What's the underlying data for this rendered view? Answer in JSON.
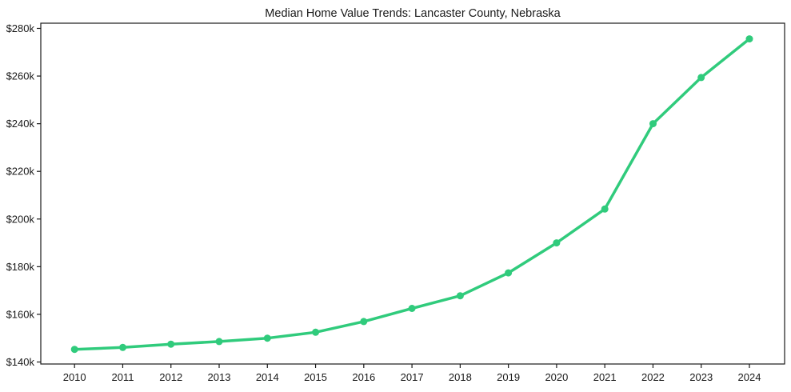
{
  "chart_data": {
    "type": "line",
    "title": "Median Home Value Trends: Lancaster County, Nebraska",
    "xlabel": "",
    "ylabel": "",
    "categories": [
      "2010",
      "2011",
      "2012",
      "2013",
      "2014",
      "2015",
      "2016",
      "2017",
      "2018",
      "2019",
      "2020",
      "2021",
      "2022",
      "2023",
      "2024"
    ],
    "series": [
      {
        "name": "Median Home Value",
        "values": [
          145300,
          146100,
          147500,
          148600,
          150000,
          152500,
          157000,
          162500,
          167800,
          177400,
          190000,
          204200,
          240000,
          259400,
          275600
        ]
      }
    ],
    "yticks": [
      {
        "value": 140000,
        "label": "$140k"
      },
      {
        "value": 160000,
        "label": "$160k"
      },
      {
        "value": 180000,
        "label": "$180k"
      },
      {
        "value": 200000,
        "label": "$200k"
      },
      {
        "value": 220000,
        "label": "$220k"
      },
      {
        "value": 240000,
        "label": "$240k"
      },
      {
        "value": 260000,
        "label": "$260k"
      },
      {
        "value": 280000,
        "label": "$280k"
      }
    ],
    "xlim": [
      2009.3,
      2024.73
    ],
    "ylim": [
      139160,
      282180
    ],
    "grid": false,
    "legend_position": "none",
    "line_color": "#30cb7c",
    "marker_color": "#30cb7c",
    "axis_color": "#1a1a1a",
    "text_color": "#1a1a1a",
    "background_color": "#ffffff"
  }
}
